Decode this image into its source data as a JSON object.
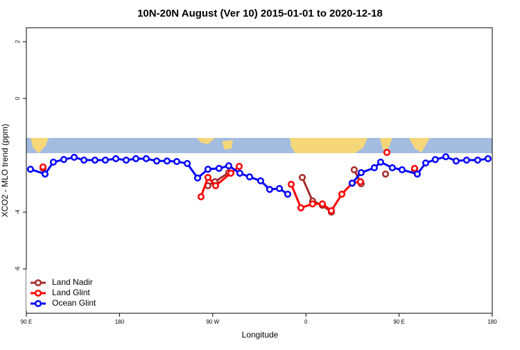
{
  "chart_data": {
    "type": "line",
    "title": "10N-20N August (Ver 10)   2015-01-01 to 2020-12-18",
    "x_label": "Longitude",
    "y_label": "XCO2 - MLO trend (ppm)",
    "xlim": [
      90,
      540
    ],
    "ylim": [
      -7.56,
      2.49
    ],
    "xticks": [
      {
        "value": 90,
        "label": "90 E"
      },
      {
        "value": 180,
        "label": "180"
      },
      {
        "value": 270,
        "label": "90 W"
      },
      {
        "value": 360,
        "label": "0"
      },
      {
        "value": 450,
        "label": "90 E"
      },
      {
        "value": 540,
        "label": "180"
      }
    ],
    "yticks": [
      -6,
      -4,
      0,
      2
    ],
    "legend": "bottom-left",
    "series": [
      {
        "name": "Land Nadir",
        "color": "#a52a2a",
        "x": [
          106.1,
          265.4,
          272.1,
          285.5,
          356.5,
          366.5,
          375.9,
          384.6,
          406.7,
          413.4,
          436.9,
          465.0
        ],
        "values": [
          -2.46,
          -3.07,
          -2.93,
          -2.61,
          -2.78,
          -3.61,
          -3.76,
          -4.0,
          -2.51,
          -3.0,
          -2.66,
          -2.51
        ]
      },
      {
        "name": "Land Glint",
        "color": "#ff0000",
        "x": [
          106.1,
          258.7,
          265.4,
          272.8,
          287.5,
          295.6,
          345.8,
          355.2,
          366.5,
          375.9,
          384.6,
          394.7,
          404.7,
          412.7,
          438.2,
          465.0
        ],
        "values": [
          -2.41,
          -3.46,
          -2.78,
          -3.07,
          -2.63,
          -2.39,
          -3.02,
          -3.85,
          -3.71,
          -3.71,
          -3.95,
          -3.37,
          -2.98,
          -2.93,
          -1.9,
          -2.46
        ]
      },
      {
        "name": "Ocean Glint",
        "color": "#0000ff",
        "x": [
          94.0,
          108.1,
          116.1,
          126.2,
          136.2,
          145.6,
          156.3,
          166.3,
          176.4,
          186.4,
          195.8,
          205.8,
          215.9,
          225.9,
          235.3,
          245.4,
          255.4,
          265.4,
          276.1,
          285.5,
          296.2,
          305.6,
          316.3,
          325.0,
          334.4,
          342.4,
          404.7,
          413.4,
          426.1,
          432.2,
          443.5,
          452.9,
          467.6,
          475.7,
          485.0,
          495.1,
          505.1,
          515.2,
          525.9,
          535.9
        ],
        "values": [
          -2.49,
          -2.66,
          -2.24,
          -2.15,
          -2.07,
          -2.17,
          -2.17,
          -2.17,
          -2.12,
          -2.17,
          -2.12,
          -2.12,
          -2.2,
          -2.2,
          -2.22,
          -2.29,
          -2.8,
          -2.49,
          -2.46,
          -2.37,
          -2.63,
          -2.76,
          -2.9,
          -3.2,
          -3.17,
          -3.37,
          -2.98,
          -2.61,
          -2.44,
          -2.24,
          -2.44,
          -2.51,
          -2.66,
          -2.27,
          -2.15,
          -2.05,
          -2.2,
          -2.17,
          -2.17,
          -2.12
        ]
      }
    ]
  }
}
